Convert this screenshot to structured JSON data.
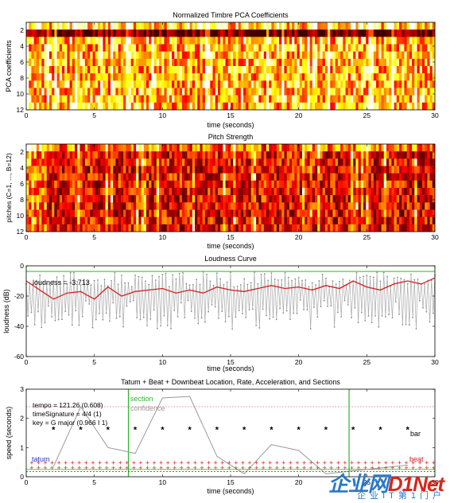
{
  "chart_data": [
    {
      "type": "heatmap",
      "title": "Normalized Timbre PCA Coefficients",
      "xlabel": "time (seconds)",
      "ylabel": "PCA coefficients",
      "xlim": [
        0,
        30
      ],
      "ylim": [
        1,
        12
      ],
      "x_ticks": [
        "0",
        "5",
        "10",
        "15",
        "20",
        "25",
        "30"
      ],
      "y_ticks": [
        "2",
        "4",
        "6",
        "8",
        "10",
        "12"
      ],
      "colormap": "hot",
      "grid": false
    },
    {
      "type": "heatmap",
      "title": "Pitch Strength",
      "xlabel": "time (seconds)",
      "ylabel": "pitches (C=1, ..., B=12)",
      "xlim": [
        0,
        30
      ],
      "ylim": [
        1,
        12
      ],
      "x_ticks": [
        "0",
        "5",
        "10",
        "15",
        "20",
        "25",
        "30"
      ],
      "y_ticks": [
        "2",
        "4",
        "6",
        "8",
        "10",
        "12"
      ],
      "colormap": "hot",
      "grid": false
    },
    {
      "type": "line",
      "title": "Loudness Curve",
      "xlabel": "time (seconds)",
      "ylabel": "loudness (dB)",
      "xlim": [
        0,
        30
      ],
      "ylim": [
        -60,
        0
      ],
      "x_ticks": [
        "0",
        "5",
        "10",
        "15",
        "20",
        "25",
        "30"
      ],
      "y_ticks": [
        "0",
        "-20",
        "-40",
        "-60"
      ],
      "annotation": "loudness = -3.713",
      "overall_loudness": -3.713,
      "smoothed_x": [
        0,
        1,
        2,
        3,
        4,
        5,
        6,
        7,
        8,
        9,
        10,
        11,
        12,
        13,
        14,
        15,
        16,
        17,
        18,
        19,
        20,
        21,
        22,
        23,
        24,
        25,
        26,
        27,
        28,
        29,
        30
      ],
      "smoothed_y": [
        -10,
        -16,
        -22,
        -18,
        -17,
        -22,
        -14,
        -20,
        -17,
        -16,
        -15,
        -18,
        -16,
        -18,
        -14,
        -16,
        -17,
        -15,
        -13,
        -15,
        -14,
        -16,
        -13,
        -15,
        -10,
        -14,
        -16,
        -12,
        -10,
        -12,
        -8
      ]
    },
    {
      "type": "line",
      "title": "Tatum + Beat + Downbeat Location, Rate, Acceleration, and Sections",
      "xlabel": "time (seconds)",
      "ylabel": "speed (seconds)",
      "xlim": [
        0,
        30
      ],
      "ylim": [
        0,
        3
      ],
      "x_ticks": [
        "0",
        "5",
        "10",
        "15",
        "20",
        "25",
        "30"
      ],
      "y_ticks": [
        "0",
        "1",
        "2",
        "3"
      ],
      "annotations": [
        "tempo = 121.26 (0.608)",
        "timeSignature = 4/4 (1)",
        "key = G major (0.966 I 1)"
      ],
      "labels": {
        "section": "section",
        "confidence": "confidence",
        "bar": "bar",
        "tatum": "tatum",
        "beat": "beat"
      },
      "section_times": [
        7.5,
        23.7
      ],
      "bar_level": 1.62,
      "bar_times": [
        2,
        4,
        6,
        8,
        10,
        12,
        14,
        16,
        18,
        20,
        22,
        24,
        26,
        28
      ],
      "beat_level": 0.48,
      "beat_times": [
        0.4,
        0.9,
        1.4,
        1.9,
        2.4,
        2.9,
        3.4,
        3.9,
        4.4,
        4.9,
        5.4,
        5.9,
        6.4,
        6.9,
        7.4,
        7.9,
        8.4,
        8.9,
        9.4,
        9.9,
        10.4,
        10.9,
        11.4,
        11.9,
        12.4,
        12.9,
        13.4,
        13.9,
        14.4,
        14.9,
        15.4,
        15.9,
        16.4,
        16.9,
        17.4,
        17.9,
        18.4,
        18.9,
        19.4,
        19.9,
        20.4,
        20.9,
        21.4,
        21.9,
        22.4,
        22.9,
        23.4,
        23.9,
        24.4,
        24.9,
        25.4,
        25.9,
        26.4,
        26.9,
        27.4,
        27.9,
        28.4,
        28.9,
        29.4,
        29.9
      ],
      "beat_level_2": 0.3,
      "tatum_level": 0.18,
      "confidence_x": [
        2,
        4,
        6,
        8,
        10,
        12,
        14,
        16,
        18,
        20,
        22,
        24,
        26,
        28
      ],
      "confidence_y": [
        0.35,
        2.4,
        1.0,
        0.8,
        2.7,
        2.75,
        0.7,
        0.1,
        1.1,
        0.9,
        0.1,
        0.2,
        0.3,
        0.4
      ],
      "dotted_level": 2.4,
      "green_level": 0.25
    }
  ],
  "watermark": {
    "logo": "企业网",
    "logo_accent": "D1Net",
    "subtitle": "企业IT第1门户"
  }
}
